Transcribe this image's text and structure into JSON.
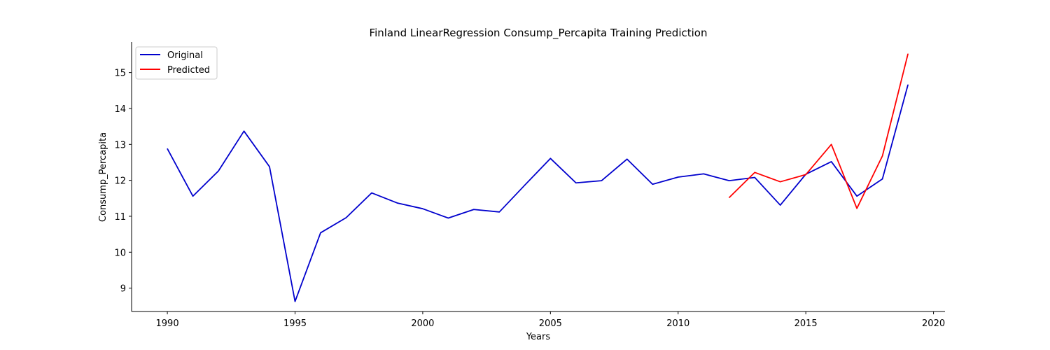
{
  "chart_data": {
    "type": "line",
    "title": "Finland LinearRegression Consump_Percapita Training Prediction",
    "xlabel": "Years",
    "ylabel": "Consump_Percapita",
    "xlim": [
      1988.6,
      2020.45
    ],
    "ylim": [
      8.35,
      15.85
    ],
    "xticks": [
      1990,
      1995,
      2000,
      2005,
      2010,
      2015,
      2020
    ],
    "yticks": [
      9,
      10,
      11,
      12,
      13,
      14,
      15
    ],
    "grid": false,
    "legend_position": "top-left",
    "series": [
      {
        "name": "Original",
        "color": "#0000cd",
        "x": [
          1990,
          1991,
          1992,
          1993,
          1994,
          1995,
          1996,
          1997,
          1998,
          1999,
          2000,
          2001,
          2002,
          2003,
          2004,
          2005,
          2006,
          2007,
          2008,
          2009,
          2010,
          2011,
          2012,
          2013,
          2014,
          2015,
          2016,
          2017,
          2018,
          2019
        ],
        "y": [
          12.88,
          11.56,
          12.26,
          13.37,
          12.38,
          8.63,
          10.54,
          10.96,
          11.65,
          11.37,
          11.21,
          10.95,
          11.19,
          11.12,
          11.87,
          12.61,
          11.93,
          11.99,
          12.59,
          11.89,
          12.09,
          12.18,
          11.99,
          12.08,
          11.31,
          12.17,
          12.52,
          11.56,
          12.04,
          14.66
        ]
      },
      {
        "name": "Predicted",
        "color": "#ff0000",
        "x": [
          2012,
          2013,
          2014,
          2015,
          2016,
          2017,
          2018,
          2019
        ],
        "y": [
          11.52,
          12.22,
          11.96,
          12.16,
          13.0,
          11.22,
          12.68,
          15.52
        ]
      }
    ]
  }
}
